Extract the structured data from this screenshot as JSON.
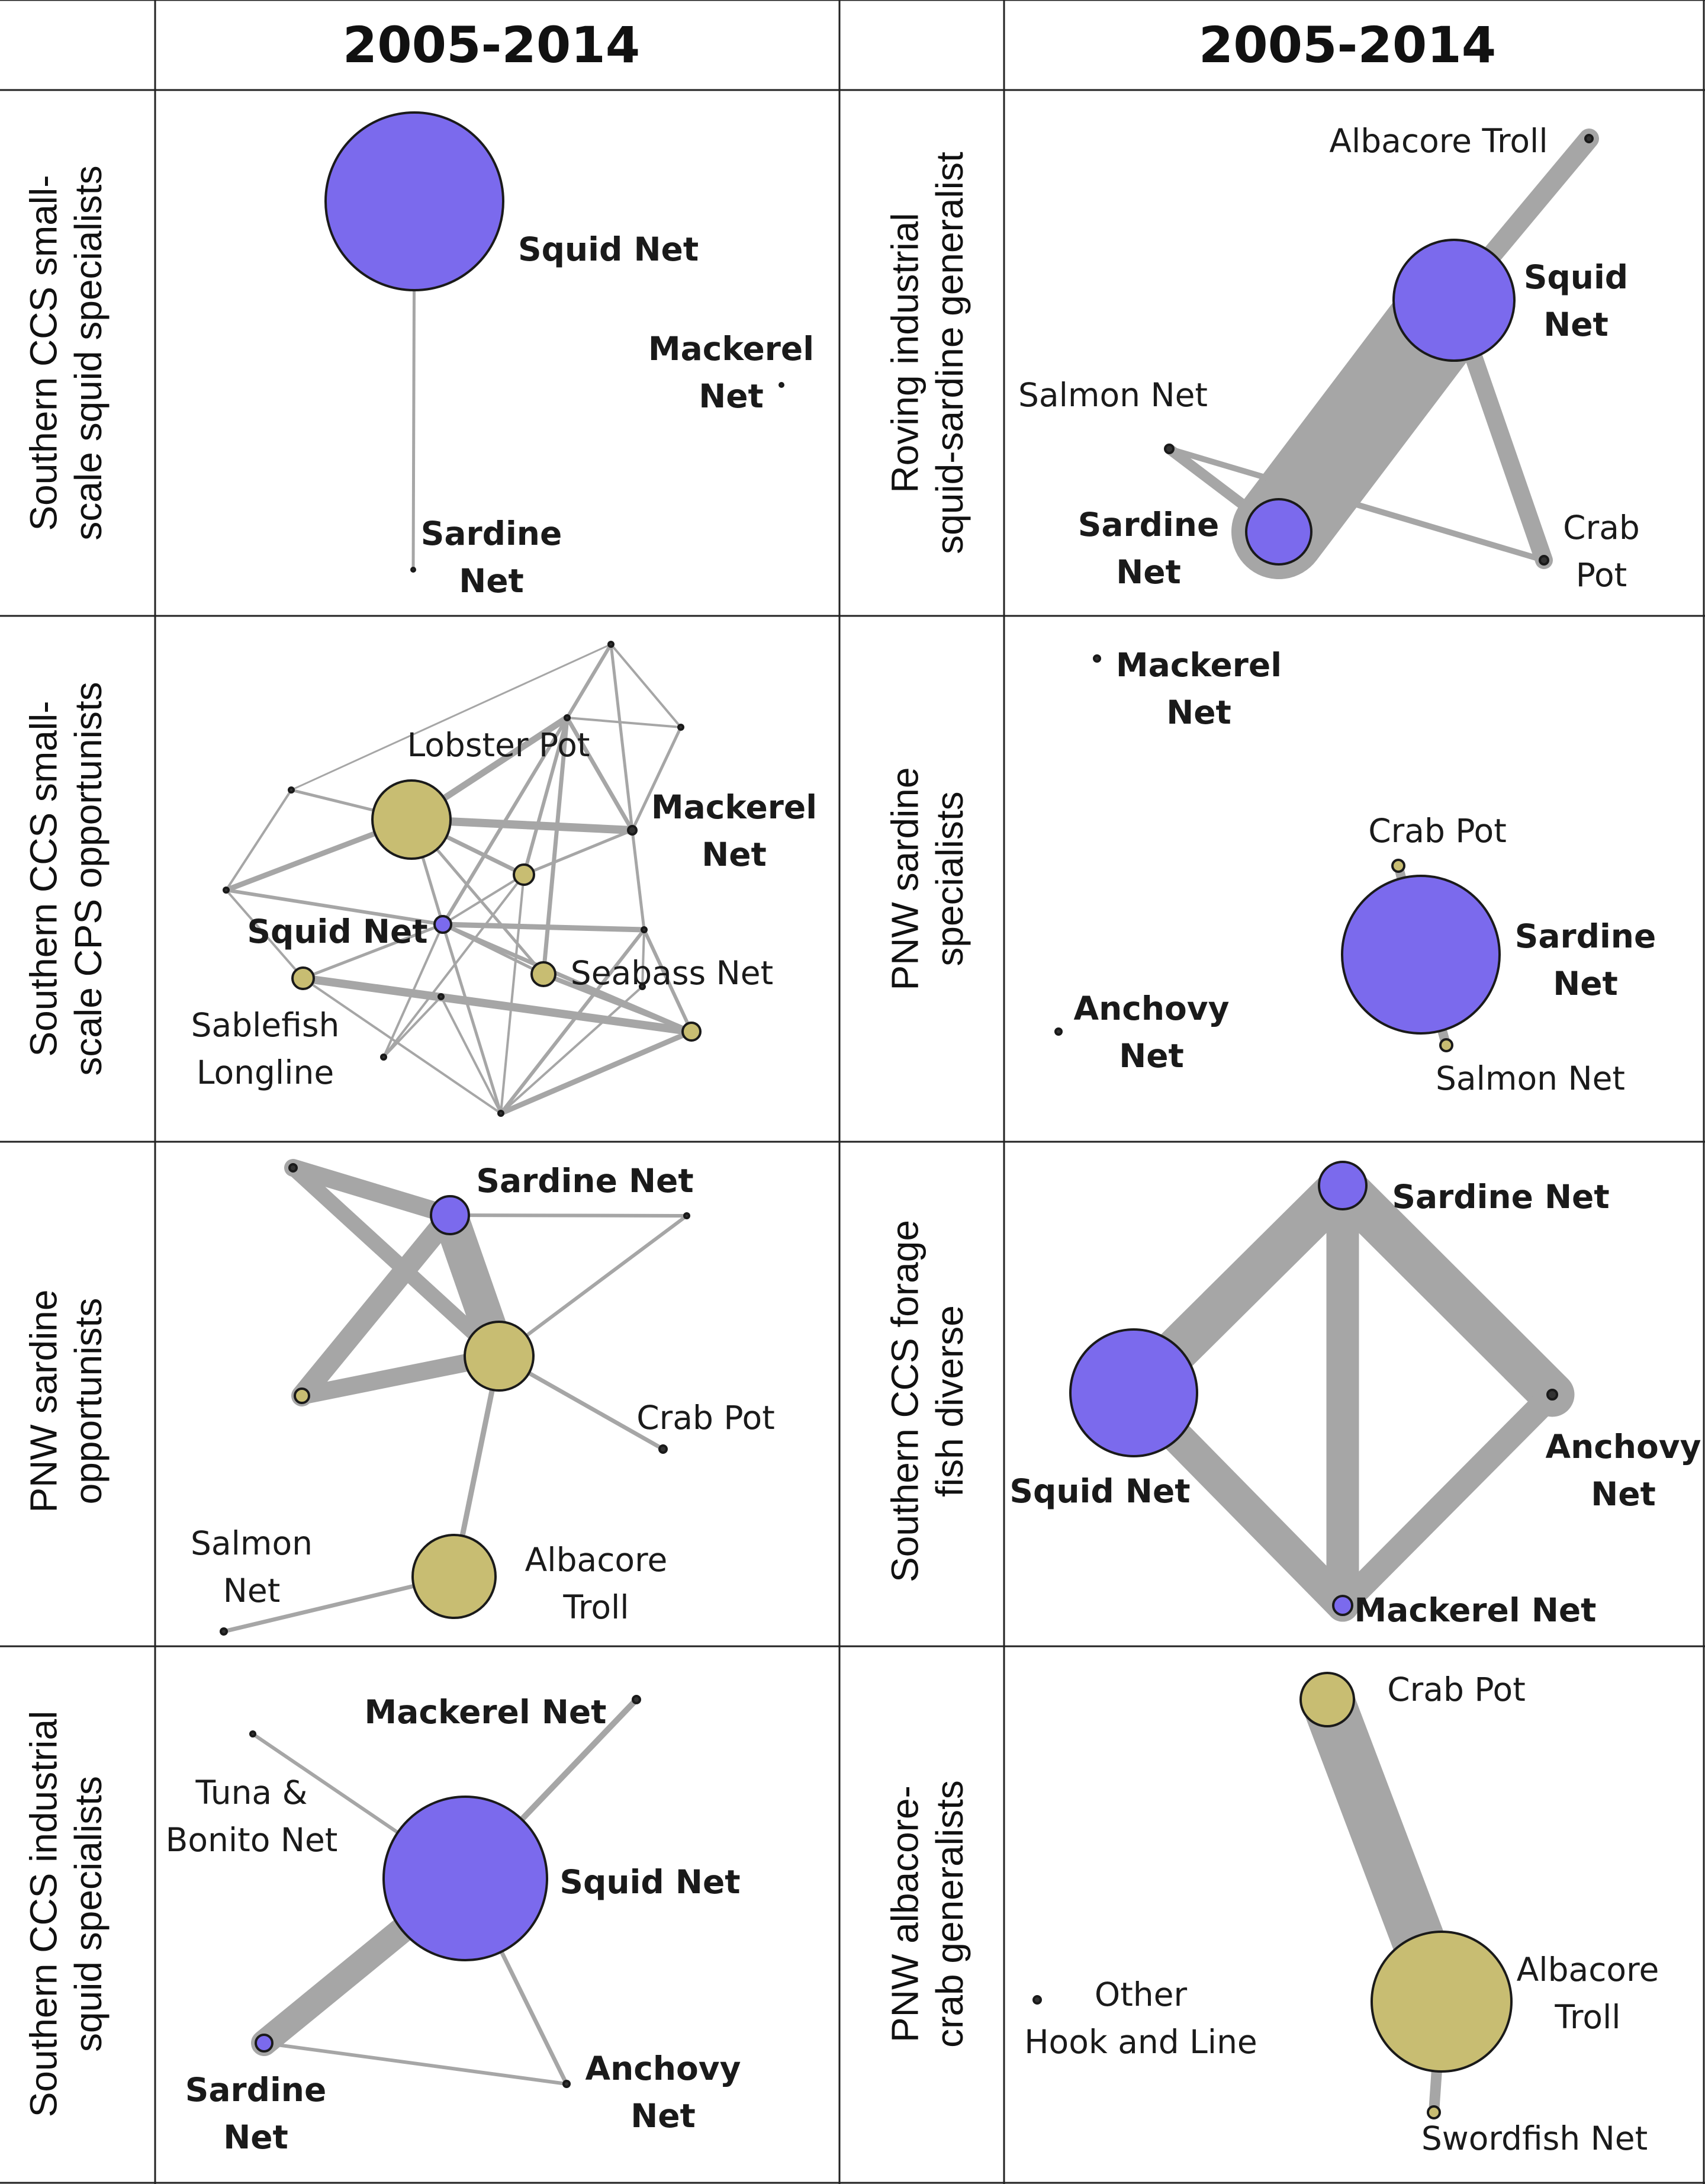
{
  "headers": [
    "2005-2014",
    "2005-2014"
  ],
  "colors": {
    "squid": "#7b6aed",
    "other": "#c8bd72",
    "edge": "#a6a6a6",
    "dot": "#333333"
  },
  "panels": [
    {
      "label": [
        "Southern CCS small-",
        "scale squid specialists"
      ],
      "nodes": [
        {
          "id": "squid",
          "label": [
            "Squid Net"
          ],
          "bold": true
        },
        {
          "id": "mack",
          "label": [
            "Mackerel",
            "Net"
          ],
          "bold": true
        },
        {
          "id": "sard",
          "label": [
            "Sardine",
            "Net"
          ],
          "bold": true
        }
      ]
    },
    {
      "label": [
        "Roving industrial",
        "squid-sardine generalist"
      ],
      "nodes": [
        {
          "id": "alb",
          "label": [
            "Albacore Troll"
          ],
          "bold": false
        },
        {
          "id": "squid",
          "label": [
            "Squid",
            "Net"
          ],
          "bold": true
        },
        {
          "id": "salmon",
          "label": [
            "Salmon Net"
          ],
          "bold": false
        },
        {
          "id": "sard",
          "label": [
            "Sardine",
            "Net"
          ],
          "bold": true
        },
        {
          "id": "crab",
          "label": [
            "Crab",
            "Pot"
          ],
          "bold": false
        }
      ]
    },
    {
      "label": [
        "Southern CCS small-",
        "scale CPS opportunists"
      ],
      "nodes": [
        {
          "id": "lobster",
          "label": [
            "Lobster Pot"
          ],
          "bold": false
        },
        {
          "id": "mack",
          "label": [
            "Mackerel",
            "Net"
          ],
          "bold": true
        },
        {
          "id": "squid",
          "label": [
            "Squid Net"
          ],
          "bold": true
        },
        {
          "id": "seabass",
          "label": [
            "Seabass Net"
          ],
          "bold": false
        },
        {
          "id": "sable",
          "label": [
            "Sablefish",
            "Longline"
          ],
          "bold": false
        }
      ]
    },
    {
      "label": [
        "PNW sardine",
        "specialists"
      ],
      "nodes": [
        {
          "id": "mack",
          "label": [
            "Mackerel",
            "Net"
          ],
          "bold": true
        },
        {
          "id": "crab",
          "label": [
            "Crab Pot"
          ],
          "bold": false
        },
        {
          "id": "sard",
          "label": [
            "Sardine",
            "Net"
          ],
          "bold": true
        },
        {
          "id": "anch",
          "label": [
            "Anchovy",
            "Net"
          ],
          "bold": true
        },
        {
          "id": "salmon",
          "label": [
            "Salmon Net"
          ],
          "bold": false
        }
      ]
    },
    {
      "label": [
        "PNW sardine",
        "opportunists"
      ],
      "nodes": [
        {
          "id": "sard",
          "label": [
            "Sardine Net"
          ],
          "bold": true
        },
        {
          "id": "crab",
          "label": [
            "Crab Pot"
          ],
          "bold": false
        },
        {
          "id": "salmon",
          "label": [
            "Salmon",
            "Net"
          ],
          "bold": false
        },
        {
          "id": "alb",
          "label": [
            "Albacore",
            "Troll"
          ],
          "bold": false
        }
      ]
    },
    {
      "label": [
        "Southern CCS forage",
        "fish diverse"
      ],
      "nodes": [
        {
          "id": "sard",
          "label": [
            "Sardine Net"
          ],
          "bold": true
        },
        {
          "id": "squid",
          "label": [
            "Squid Net"
          ],
          "bold": true
        },
        {
          "id": "anch",
          "label": [
            "Anchovy",
            "Net"
          ],
          "bold": true
        },
        {
          "id": "mack",
          "label": [
            "Mackerel  Net"
          ],
          "bold": true
        }
      ]
    },
    {
      "label": [
        "Southern CCS industrial",
        "squid specialists"
      ],
      "nodes": [
        {
          "id": "mack",
          "label": [
            "Mackerel  Net"
          ],
          "bold": true
        },
        {
          "id": "tuna",
          "label": [
            "Tuna &",
            "Bonito Net"
          ],
          "bold": false
        },
        {
          "id": "squid",
          "label": [
            "Squid Net"
          ],
          "bold": true
        },
        {
          "id": "sard",
          "label": [
            "Sardine",
            "Net"
          ],
          "bold": true
        },
        {
          "id": "anch",
          "label": [
            "Anchovy",
            "Net"
          ],
          "bold": true
        }
      ]
    },
    {
      "label": [
        "PNW albacore-",
        "crab generalists"
      ],
      "nodes": [
        {
          "id": "crab",
          "label": [
            "Crab Pot"
          ],
          "bold": false
        },
        {
          "id": "alb",
          "label": [
            "Albacore",
            "Troll"
          ],
          "bold": false
        },
        {
          "id": "other",
          "label": [
            "Other",
            "Hook and Line"
          ],
          "bold": false
        },
        {
          "id": "sword",
          "label": [
            "Swordfish Net"
          ],
          "bold": false
        }
      ]
    }
  ]
}
